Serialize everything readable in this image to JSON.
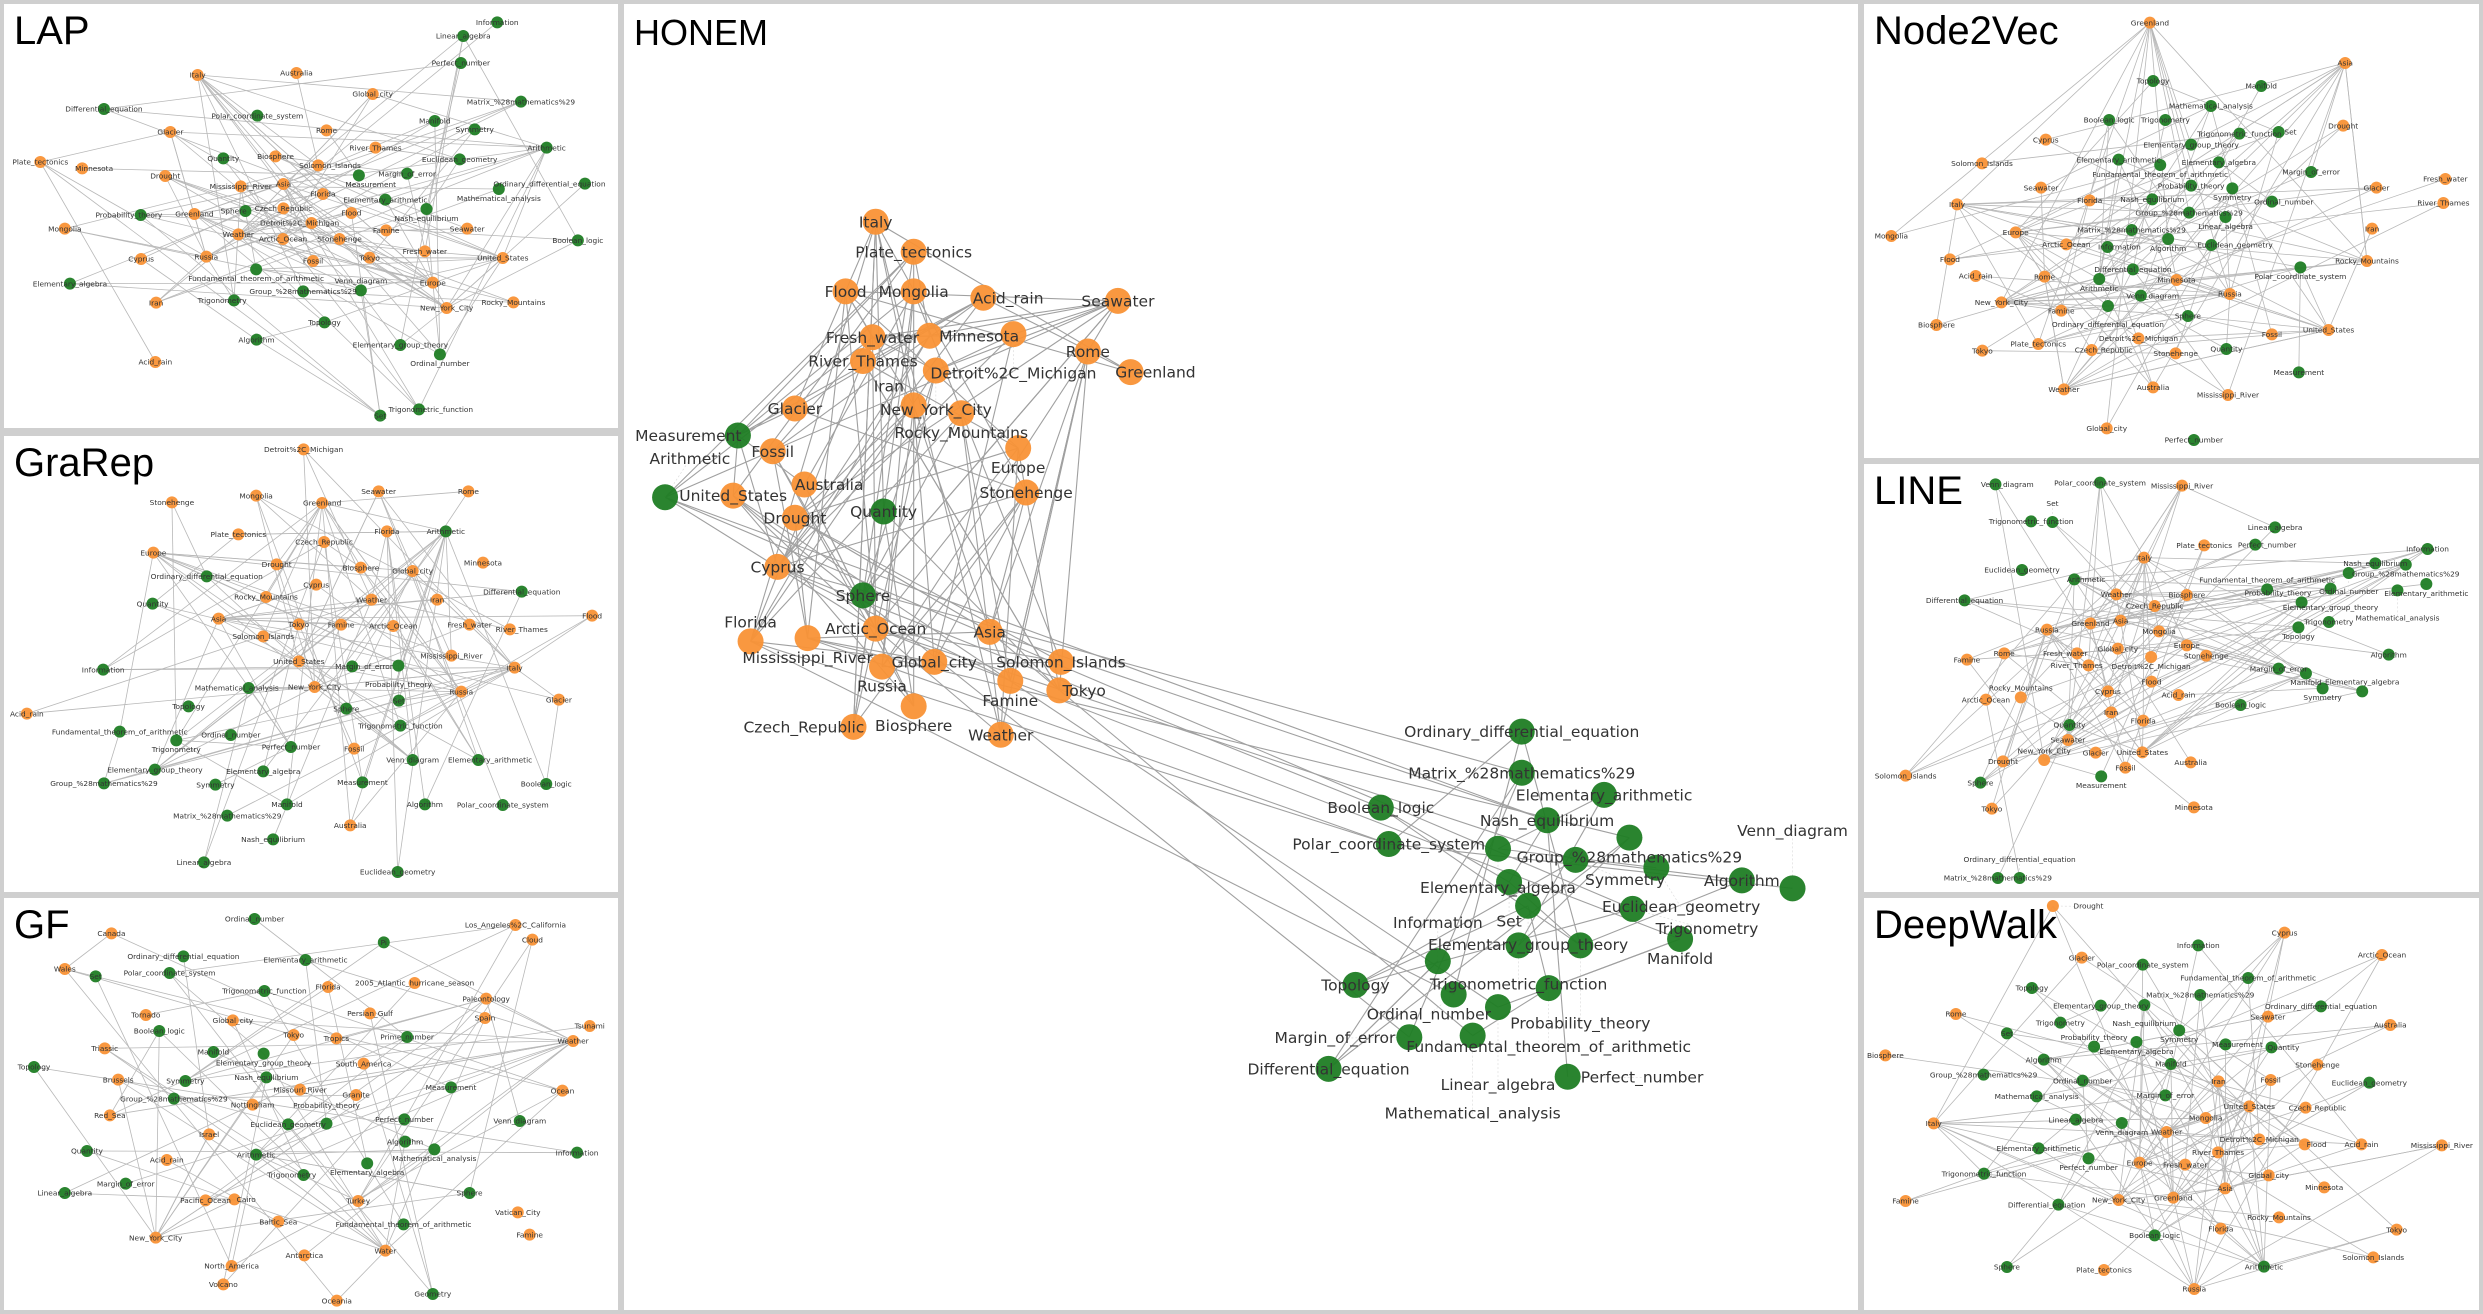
{
  "colors": {
    "orange": "#f99236",
    "green": "#1f7d24",
    "edge": "#b8b8b8"
  },
  "panels": [
    {
      "title": "LAP",
      "orange_nodes": [
        "Italy",
        "Australia",
        "Global_city",
        "Rome",
        "Glacier",
        "River_Thames",
        "Biosphere",
        "Plate_tectonics",
        "Minnesota",
        "Solomon_Islands",
        "Drought",
        "Mississippi_River",
        "Asia",
        "Florida",
        "Greenland",
        "Czech_Republic",
        "Flood",
        "Mongolia",
        "Detroit%2C_Michigan",
        "Famine",
        "Seawater",
        "Weather",
        "Arctic_Ocean",
        "Stonehenge",
        "Cyprus",
        "Russia",
        "Fossil",
        "Tokyo",
        "Fresh_water",
        "United_States",
        "Europe",
        "Iran",
        "New_York_City",
        "Rocky_Mountains",
        "Acid_rain"
      ],
      "green_nodes": [
        "Information",
        "Linear_algebra",
        "Perfect_number",
        "Matrix_%28mathematics%29",
        "Differential_equation",
        "Polar_coordinate_system",
        "Manifold",
        "Symmetry",
        "Arithmetic",
        "Quantity",
        "Euclidean_geometry",
        "Measurement",
        "Margin_of_error",
        "Ordinary_differential_equation",
        "Mathematical_analysis",
        "Elementary_arithmetic",
        "Nash_equilibrium",
        "Probability_theory",
        "Sphere",
        "Boolean_logic",
        "Fundamental_theorem_of_arithmetic",
        "Elementary_algebra",
        "Group_%28mathematics%29",
        "Venn_diagram",
        "Trigonometry",
        "Topology",
        "Algorithm",
        "Elementary_group_theory",
        "Ordinal_number",
        "Set",
        "Trigonometric_function"
      ]
    },
    {
      "title": "GraRep",
      "orange_nodes": [
        "Detroit%2C_Michigan",
        "Stonehenge",
        "Mongolia",
        "Seawater",
        "Greenland",
        "Rome",
        "Plate_tectonics",
        "Florida",
        "Czech_Republic",
        "Europe",
        "Drought",
        "Biosphere",
        "Global_city",
        "Minnesota",
        "Cyprus",
        "Rocky_Mountains",
        "Weather",
        "Iran",
        "Asia",
        "Flood",
        "Tokyo",
        "Famine",
        "Arctic_Ocean",
        "Fresh_water",
        "River_Thames",
        "Solomon_Islands",
        "Mississippi_River",
        "United_States",
        "Italy",
        "New_York_City",
        "Russia",
        "Glacier",
        "Acid_rain",
        "Fossil",
        "Australia"
      ],
      "green_nodes": [
        "Arithmetic",
        "Ordinary_differential_equation",
        "Differential_equation",
        "Quantity",
        "Margin_of_error",
        "Probability_theory",
        "Information",
        "Mathematical_analysis",
        "Topology",
        "Sphere",
        "Set",
        "Trigonometric_function",
        "Fundamental_theorem_of_arithmetic",
        "Trigonometry",
        "Ordinal_number",
        "Perfect_number",
        "Venn_diagram",
        "Elementary_arithmetic",
        "Elementary_group_theory",
        "Elementary_algebra",
        "Group_%28mathematics%29",
        "Symmetry",
        "Measurement",
        "Boolean_logic",
        "Manifold",
        "Algorithm",
        "Polar_coordinate_system",
        "Matrix_%28mathematics%29",
        "Nash_equilibrium",
        "Linear_algebra",
        "Euclidean_geometry"
      ]
    },
    {
      "title": "GF",
      "orange_nodes": [
        "Canada",
        "Los_Angeles%2C_California",
        "Cloud",
        "Wales",
        "2005_Atlantic_hurricane_season",
        "Florida",
        "Paleontology",
        "Tornado",
        "Persian_Gulf",
        "Spain",
        "Global_city",
        "Tokyo",
        "Tropics",
        "Tsunami",
        "Weather",
        "Triassic",
        "South_America",
        "Brussels",
        "Missouri_River",
        "Ocean",
        "Granite",
        "Nottingham",
        "Red_Sea",
        "Israel",
        "Acid_rain",
        "Pacific_Ocean",
        "Cairo",
        "Turkey",
        "Vatican_City",
        "Baltic_Sea",
        "Famine",
        "New_York_City",
        "Water",
        "Antarctica",
        "North_America",
        "Volcano",
        "Oceania"
      ],
      "green_nodes": [
        "Ordinal_number",
        "Pi",
        "Ordinary_differential_equation",
        "Elementary_arithmetic",
        "Set",
        "Polar_coordinate_system",
        "Trigonometric_function",
        "Boolean_logic",
        "Prime_number",
        "Manifold",
        "Elementary_group_theory",
        "Topology",
        "Symmetry",
        "Nash_equilibrium",
        "Measurement",
        "Group_%28mathematics%29",
        "Euclidean_geometry",
        "Probability_theory",
        "Perfect_number",
        "Venn_diagram",
        "Algorithm",
        "Mathematical_analysis",
        "Quantity",
        "Information",
        "Arithmetic",
        "Elementary_algebra",
        "Trigonometry",
        "Margin_of_error",
        "Linear_algebra",
        "Sphere",
        "Fundamental_theorem_of_arithmetic",
        "Geometry"
      ]
    },
    {
      "title": "HONEM",
      "orange_nodes": [
        "Italy",
        "Plate_tectonics",
        "Flood",
        "Mongolia",
        "Acid_rain",
        "Seawater",
        "Fresh_water",
        "Minnesota",
        "Detroit%2C_Michigan",
        "River_Thames",
        "New_York_City",
        "Rome",
        "Greenland",
        "Glacier",
        "Iran",
        "Rocky_Mountains",
        "Fossil",
        "Europe",
        "United_States",
        "Australia",
        "Stonehenge",
        "Drought",
        "Cyprus",
        "Arctic_Ocean",
        "Mississippi_River",
        "Florida",
        "Asia",
        "Global_city",
        "Russia",
        "Solomon_Islands",
        "Famine",
        "Tokyo",
        "Biosphere",
        "Czech_Republic",
        "Weather"
      ],
      "green_nodes": [
        "Measurement",
        "Arithmetic",
        "Quantity",
        "Sphere",
        "Ordinary_differential_equation",
        "Matrix_%28mathematics%29",
        "Elementary_arithmetic",
        "Boolean_logic",
        "Nash_equilibrium",
        "Polar_coordinate_system",
        "Group_%28mathematics%29",
        "Elementary_algebra",
        "Symmetry",
        "Euclidean_geometry",
        "Algorithm",
        "Venn_diagram",
        "Set",
        "Elementary_group_theory",
        "Trigonometry",
        "Manifold",
        "Trigonometric_function",
        "Probability_theory",
        "Information",
        "Topology",
        "Fundamental_theorem_of_arithmetic",
        "Ordinal_number",
        "Linear_algebra",
        "Margin_of_error",
        "Mathematical_analysis",
        "Differential_equation",
        "Perfect_number"
      ]
    },
    {
      "title": "Node2Vec",
      "orange_nodes": [
        "Greenland",
        "Asia",
        "Drought",
        "Cyprus",
        "Solomon_Islands",
        "Fresh_water",
        "Seawater",
        "Glacier",
        "Italy",
        "Florida",
        "River_Thames",
        "Mongolia",
        "Europe",
        "Iran",
        "Arctic_Ocean",
        "Flood",
        "Rocky_Mountains",
        "Acid_rain",
        "Rome",
        "Minnesota",
        "Russia",
        "New_York_City",
        "Famine",
        "Biosphere",
        "United_States",
        "Fossil",
        "Detroit%2C_Michigan",
        "Plate_tectonics",
        "Czech_Republic",
        "Tokyo",
        "Stonehenge",
        "Weather",
        "Australia",
        "Mississippi_River",
        "Global_city"
      ],
      "green_nodes": [
        "Topology",
        "Manifold",
        "Mathematical_analysis",
        "Boolean_logic",
        "Trigonometry",
        "Trigonometric_function",
        "Set",
        "Elementary_group_theory",
        "Elementary_arithmetic",
        "Fundamental_theorem_of_arithmetic",
        "Elementary_algebra",
        "Margin_of_error",
        "Probability_theory",
        "Symmetry",
        "Nash_equilibrium",
        "Ordinal_number",
        "Group_%28mathematics%29",
        "Linear_algebra",
        "Matrix_%28mathematics%29",
        "Information",
        "Algorithm",
        "Euclidean_geometry",
        "Polar_coordinate_system",
        "Differential_equation",
        "Arithmetic",
        "Venn_diagram",
        "Ordinary_differential_equation",
        "Sphere",
        "Quantity",
        "Measurement",
        "Perfect_number"
      ]
    },
    {
      "title": "LINE",
      "orange_nodes": [
        "Mississippi_River",
        "Plate_tectonics",
        "Italy",
        "Weather",
        "Biosphere",
        "Czech_Republic",
        "Greenland",
        "Asia",
        "Russia",
        "Mongolia",
        "Europe",
        "Global_city",
        "Rome",
        "Fresh_water",
        "Detroit%2C_Michigan",
        "Stonehenge",
        "Famine",
        "River_Thames",
        "Flood",
        "Cyprus",
        "Acid_rain",
        "Arctic_Ocean",
        "Rocky_Mountains",
        "Iran",
        "Florida",
        "Seawater",
        "Glacier",
        "United_States",
        "Drought",
        "New_York_City",
        "Australia",
        "Fossil",
        "Solomon_Islands",
        "Tokyo",
        "Minnesota"
      ],
      "green_nodes": [
        "Venn_diagram",
        "Polar_coordinate_system",
        "Trigonometric_function",
        "Set",
        "Linear_algebra",
        "Perfect_number",
        "Information",
        "Nash_equilibrium",
        "Group_%28mathematics%29",
        "Ordinal_number",
        "Euclidean_geometry",
        "Arithmetic",
        "Elementary_arithmetic",
        "Fundamental_theorem_of_arithmetic",
        "Elementary_group_theory",
        "Mathematical_analysis",
        "Differential_equation",
        "Probability_theory",
        "Trigonometry",
        "Topology",
        "Algorithm",
        "Margin_of_error",
        "Manifold",
        "Symmetry",
        "Elementary_algebra",
        "Boolean_logic",
        "Quantity",
        "Measurement",
        "Sphere",
        "Matrix_%28mathematics%29",
        "Ordinary_differential_equation"
      ]
    },
    {
      "title": "DeepWalk",
      "orange_nodes": [
        "Drought",
        "Cyprus",
        "Glacier",
        "Arctic_Ocean",
        "Rome",
        "Seawater",
        "Australia",
        "Biosphere",
        "Stonehenge",
        "Iran",
        "Fossil",
        "United_States",
        "Czech_Republic",
        "Italy",
        "Mongolia",
        "Weather",
        "Detroit%2C_Michigan",
        "Flood",
        "Acid_rain",
        "Mississippi_River",
        "River_Thames",
        "Europe",
        "Fresh_water",
        "Global_city",
        "Asia",
        "Minnesota",
        "Famine",
        "New_York_City",
        "Greenland",
        "Rocky_Mountains",
        "Florida",
        "Tokyo",
        "Solomon_Islands",
        "Plate_tectonics",
        "Russia"
      ],
      "green_nodes": [
        "Information",
        "Polar_coordinate_system",
        "Fundamental_theorem_of_arithmetic",
        "Topology",
        "Matrix_%28mathematics%29",
        "Elementary_group_theory",
        "Nash_equilibrium",
        "Ordinary_differential_equation",
        "Trigonometry",
        "Set",
        "Symmetry",
        "Elementary_algebra",
        "Probability_theory",
        "Measurement",
        "Quantity",
        "Algorithm",
        "Manifold",
        "Group_%28mathematics%29",
        "Ordinal_number",
        "Euclidean_geometry",
        "Mathematical_analysis",
        "Margin_of_error",
        "Linear_algebra",
        "Venn_diagram",
        "Elementary_arithmetic",
        "Perfect_number",
        "Trigonometric_function",
        "Differential_equation",
        "Boolean_logic",
        "Sphere",
        "Arithmetic"
      ]
    }
  ]
}
